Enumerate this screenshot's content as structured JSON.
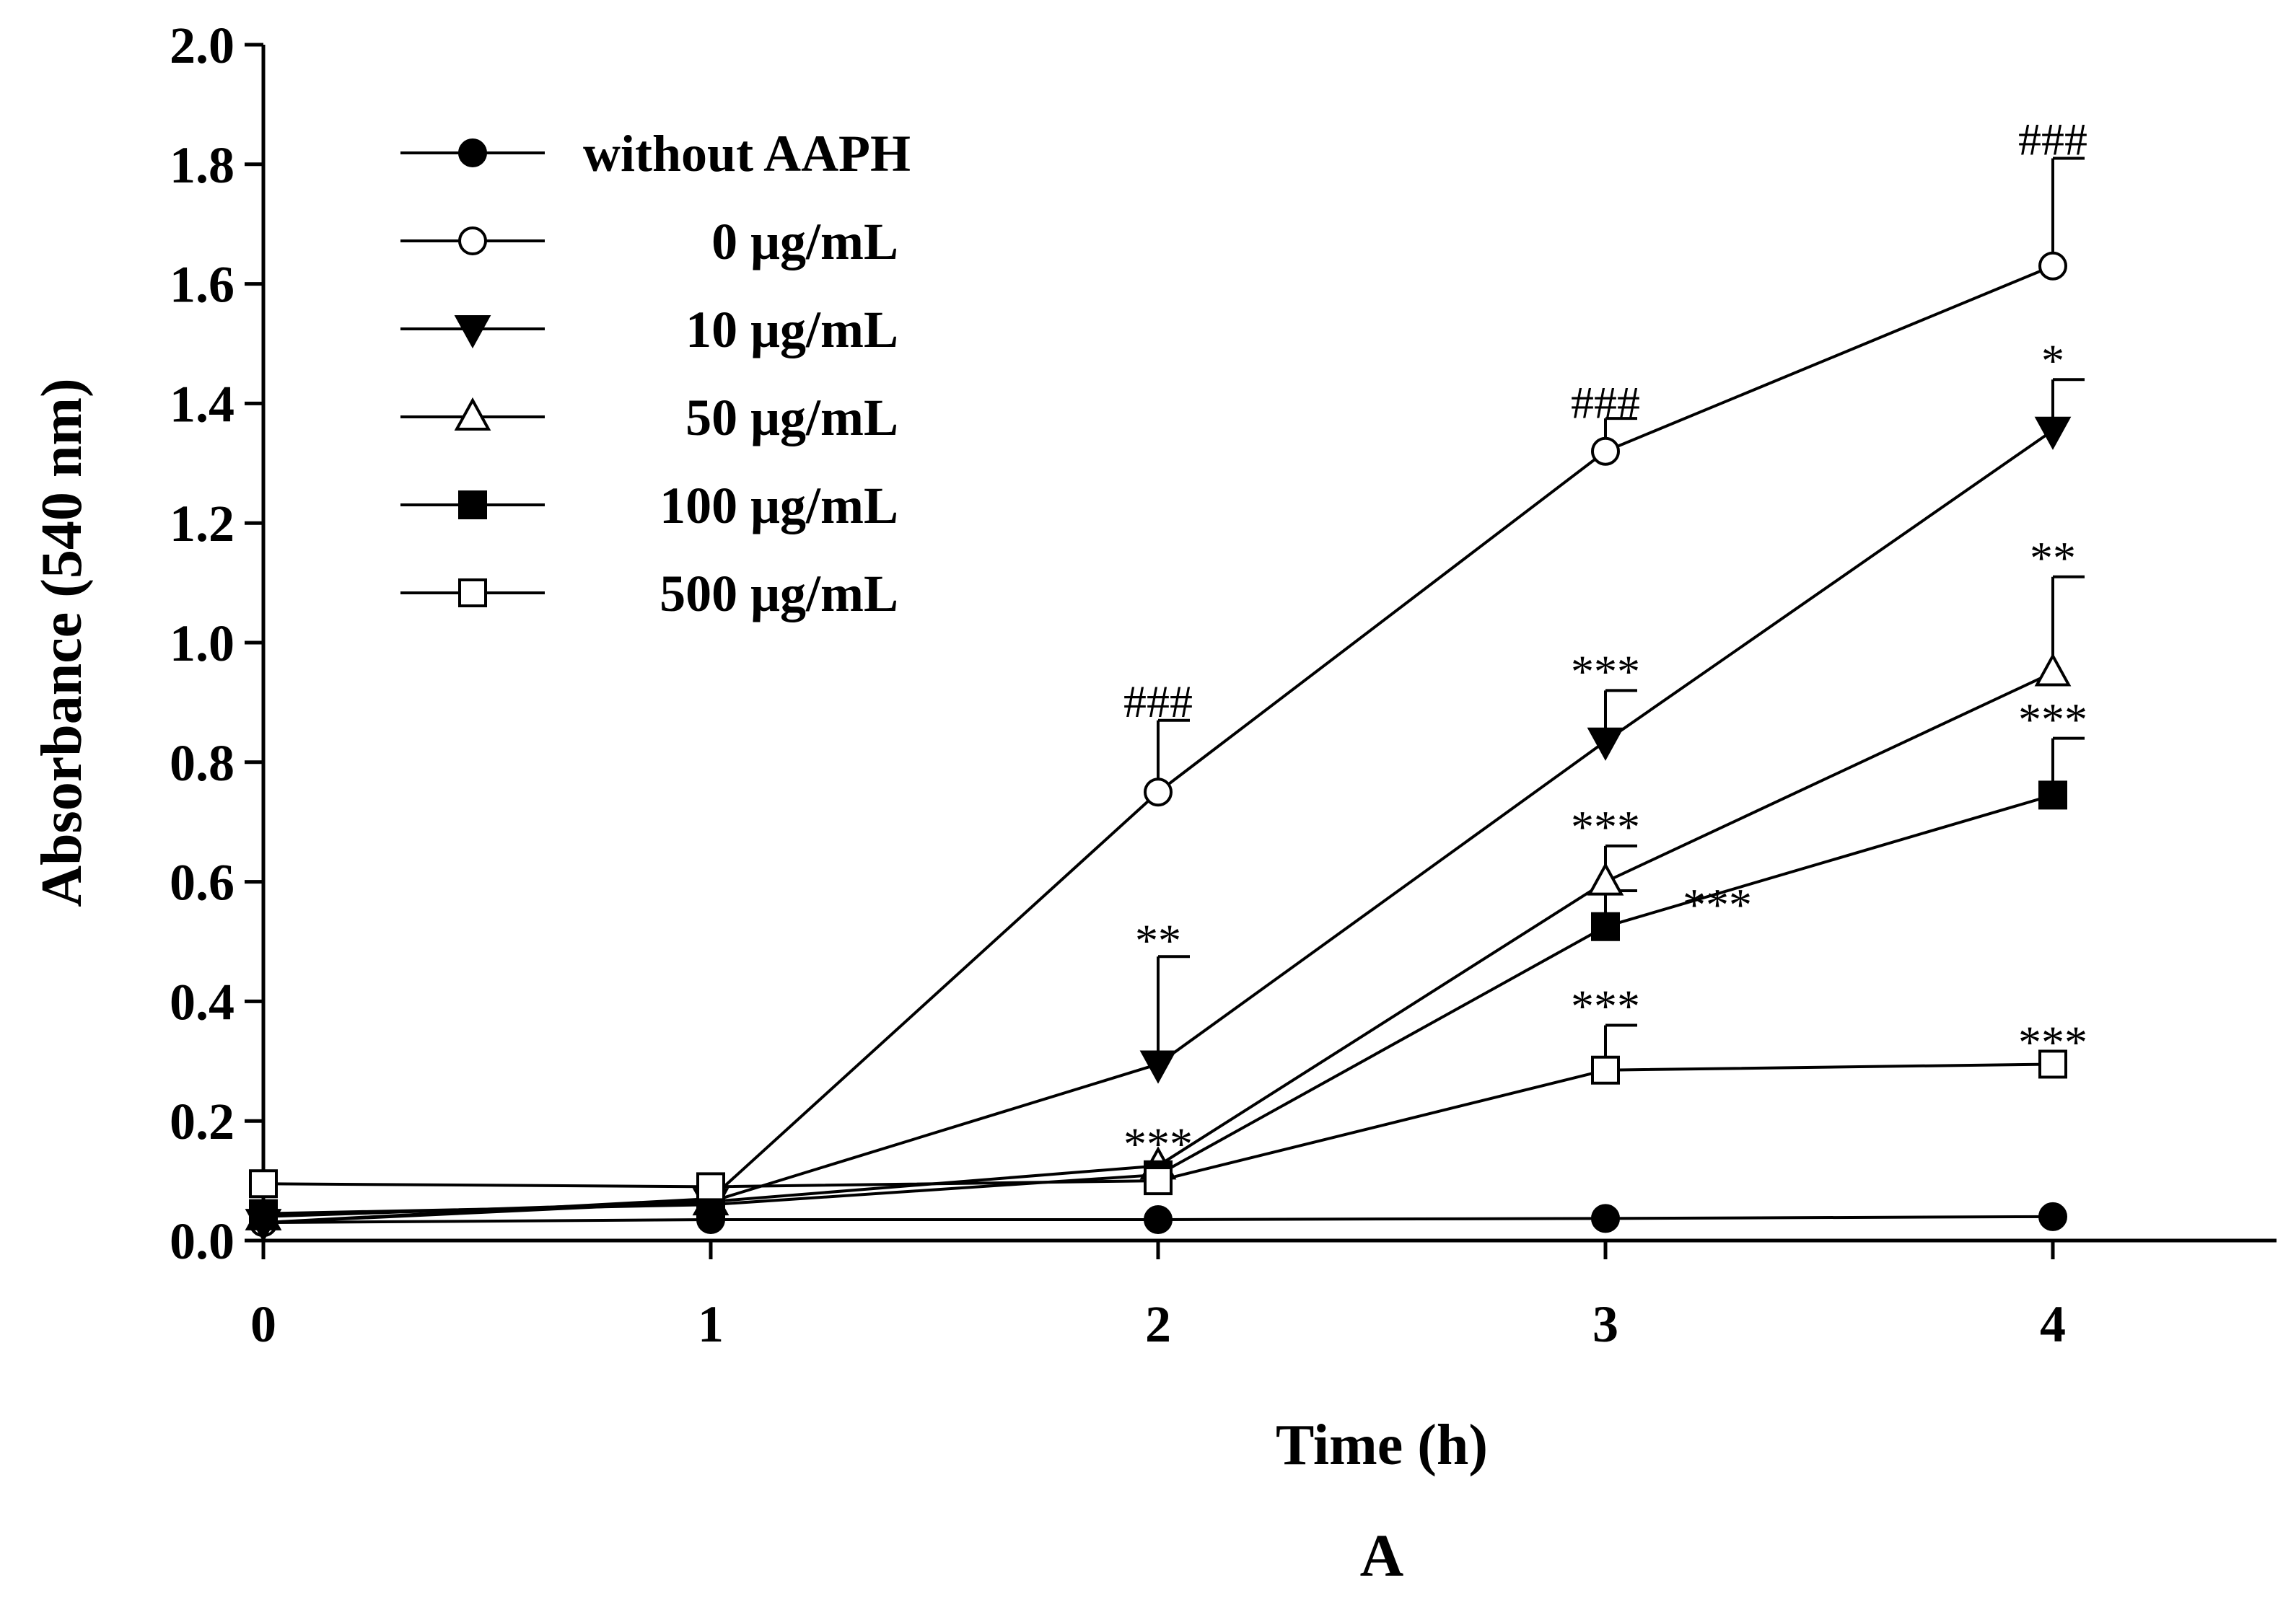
{
  "chart_data": {
    "type": "line",
    "xlabel": "Time (h)",
    "ylabel": "Absorbance (540 nm)",
    "panel_label": "A",
    "xlim": [
      0,
      4.5
    ],
    "ylim": [
      0,
      2.0
    ],
    "x_ticks": [
      0,
      1,
      2,
      3,
      4
    ],
    "y_ticks": [
      0.0,
      0.2,
      0.4,
      0.6,
      0.8,
      1.0,
      1.2,
      1.4,
      1.6,
      1.8,
      2.0
    ],
    "y_tick_labels": [
      "0.0",
      "0.2",
      "0.4",
      "0.6",
      "0.8",
      "1.0",
      "1.2",
      "1.4",
      "1.6",
      "1.8",
      "2.0"
    ],
    "x_tick_labels": [
      "0",
      "1",
      "2",
      "3",
      "4"
    ],
    "legend_position": "top-left",
    "grid": false,
    "x": [
      0,
      1,
      2,
      3,
      4
    ],
    "series": [
      {
        "name": "without AAPH",
        "marker": "circle-filled",
        "values": [
          0.03,
          0.035,
          0.035,
          0.037,
          0.04
        ],
        "error": [
          0,
          0,
          0,
          0,
          0
        ]
      },
      {
        "name": "0 μg/mL",
        "marker": "circle-open",
        "values": [
          0.03,
          0.07,
          0.75,
          1.32,
          1.63
        ],
        "error": [
          0,
          0,
          0.12,
          0.055,
          0.18
        ]
      },
      {
        "name": "10 μg/mL",
        "marker": "triangle-down-filled",
        "values": [
          0.03,
          0.065,
          0.295,
          0.835,
          1.355
        ],
        "error": [
          0,
          0,
          0.18,
          0.085,
          0.085
        ]
      },
      {
        "name": "50 μg/mL",
        "marker": "triangle-up-open",
        "values": [
          0.04,
          0.065,
          0.125,
          0.6,
          0.95
        ],
        "error": [
          0,
          0,
          0,
          0.06,
          0.16
        ]
      },
      {
        "name": "100 μg/mL",
        "marker": "square-filled",
        "values": [
          0.045,
          0.06,
          0.11,
          0.525,
          0.745
        ],
        "error": [
          0,
          0,
          0,
          0.06,
          0.095
        ]
      },
      {
        "name": "500 μg/mL",
        "marker": "square-open",
        "values": [
          0.095,
          0.09,
          0.1,
          0.285,
          0.295
        ],
        "error": [
          0,
          0,
          0,
          0.075,
          0
        ]
      }
    ],
    "annotations": [
      {
        "text": "###",
        "x": 2,
        "y": 0.9
      },
      {
        "text": "###",
        "x": 3,
        "y": 1.4
      },
      {
        "text": "###",
        "x": 4,
        "y": 1.84
      },
      {
        "text": "**",
        "x": 2,
        "y": 0.5
      },
      {
        "text": "***",
        "x": 3,
        "y": 0.95
      },
      {
        "text": "*",
        "x": 4,
        "y": 1.47
      },
      {
        "text": "**",
        "x": 4,
        "y": 1.14
      },
      {
        "text": "***",
        "x": 2,
        "y": 0.16
      },
      {
        "text": "***",
        "x": 3,
        "y": 0.69
      },
      {
        "text": "***",
        "x": 3.25,
        "y": 0.56
      },
      {
        "text": "***",
        "x": 4,
        "y": 0.87
      },
      {
        "text": "***",
        "x": 3,
        "y": 0.39
      },
      {
        "text": "***",
        "x": 4,
        "y": 0.33
      }
    ]
  }
}
